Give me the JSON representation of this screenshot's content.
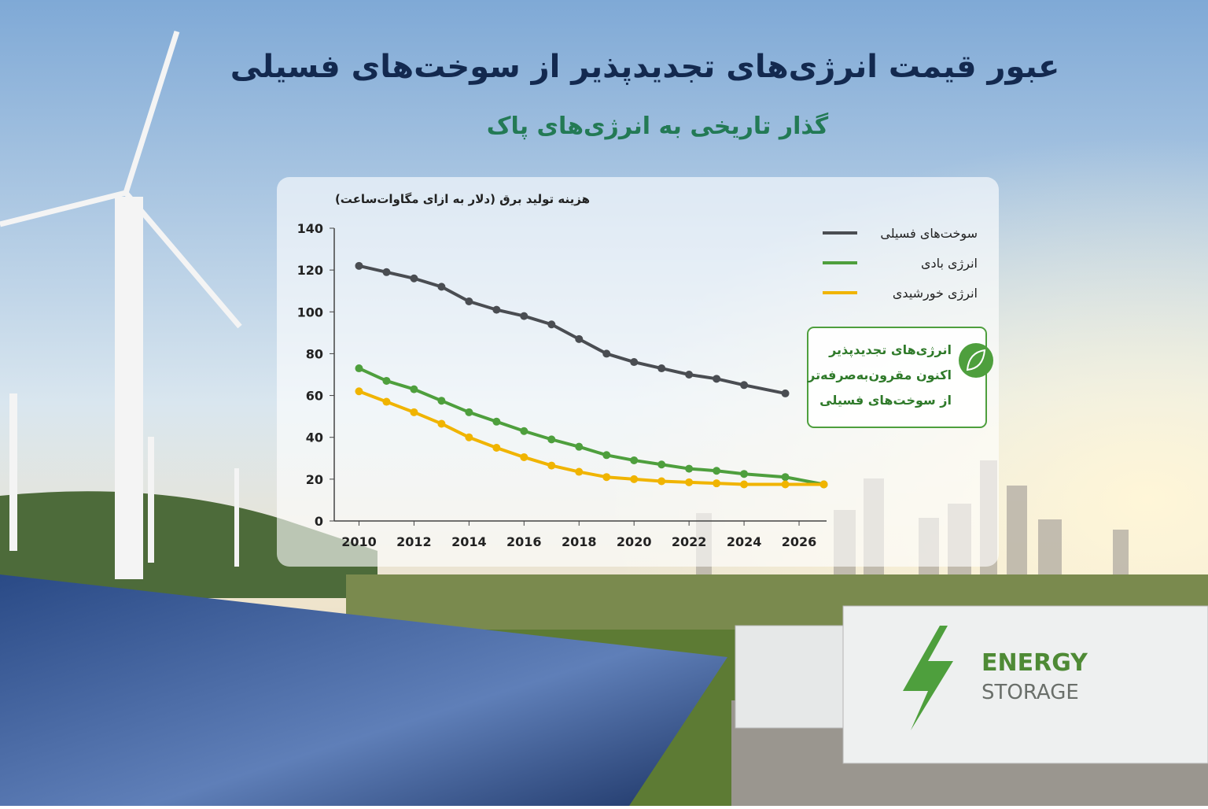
{
  "chart_data": {
    "type": "line",
    "title": "عبور قیمت انرژی‌های تجدیدپذیر از سوخت‌های فسیلی",
    "subtitle": "گذار تاریخی به انرژی‌های پاک",
    "y_label": "هزینه تولید برق (دلار به ازای مگاوات‌ساعت)",
    "x": [
      2010,
      2011,
      2012,
      2013,
      2014,
      2015,
      2016,
      2017,
      2018,
      2019,
      2020,
      2021,
      2022,
      2023,
      2024,
      2025.5,
      2026.9
    ],
    "series": [
      {
        "name": "سوخت‌های فسیلی",
        "color": "#4a4d52",
        "values": [
          122,
          119,
          116,
          112,
          105,
          101,
          98,
          94,
          87,
          80,
          76,
          73,
          70,
          68,
          65,
          61,
          null
        ]
      },
      {
        "name": "انرژی بادی",
        "color": "#4e9f3d",
        "values": [
          73,
          67,
          63,
          57.5,
          52,
          47.5,
          43,
          39,
          35.5,
          31.5,
          29,
          27,
          25,
          24,
          22.5,
          21,
          17.5
        ]
      },
      {
        "name": "انرژی خورشیدی",
        "color": "#f0b400",
        "values": [
          62,
          57,
          52,
          46.5,
          40,
          35,
          30.5,
          26.5,
          23.5,
          21,
          20,
          19,
          18.5,
          18,
          17.5,
          17.5,
          17.5
        ]
      }
    ],
    "xlim": [
      2009.1,
      2027
    ],
    "xticks": [
      2010,
      2012,
      2014,
      2016,
      2018,
      2020,
      2022,
      2024,
      2026
    ],
    "ylim": [
      0,
      140
    ],
    "yticks": [
      0,
      20,
      40,
      60,
      80,
      100,
      120,
      140
    ],
    "legend": "top-right",
    "annotation": [
      "انرژی‌های تجدیدپذیر",
      "اکنون مقرون‌به‌صرفه‌تر",
      "از سوخت‌های فسیلی"
    ],
    "scene_text": [
      "ENERGY",
      "STORAGE"
    ]
  }
}
